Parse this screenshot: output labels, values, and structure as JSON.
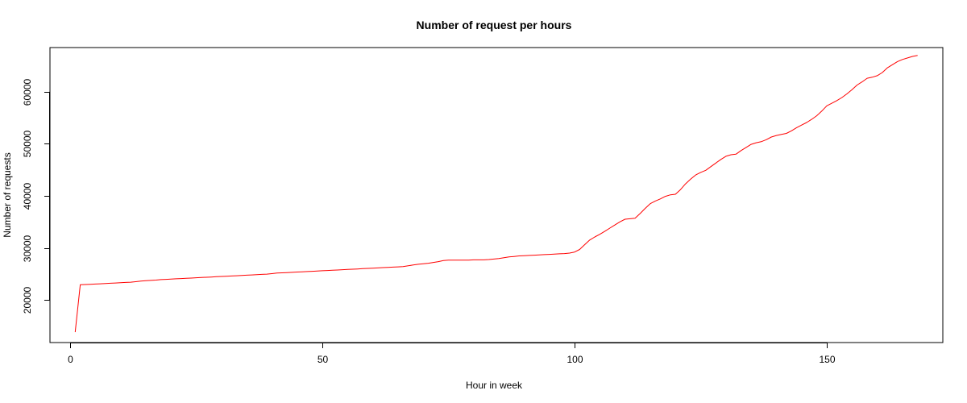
{
  "chart_data": {
    "type": "line",
    "title": "Number of request per hours",
    "xlabel": "Hour in week",
    "ylabel": "Number of requests",
    "xlim": [
      -4,
      173
    ],
    "ylim": [
      11800,
      68500
    ],
    "x_ticks": [
      0,
      50,
      100,
      150
    ],
    "y_ticks": [
      20000,
      30000,
      40000,
      50000,
      60000
    ],
    "x_tick_labels": [
      "0",
      "50",
      "100",
      "150"
    ],
    "y_tick_labels": [
      "20000",
      "30000",
      "40000",
      "50000",
      "60000"
    ],
    "grid": false,
    "legend": "none",
    "line_color": "#ff0000",
    "series": [
      {
        "x": [
          1,
          2,
          3,
          4,
          5,
          6,
          7,
          8,
          9,
          10,
          11,
          12,
          13,
          14,
          15,
          16,
          17,
          18,
          19,
          20,
          21,
          22,
          23,
          24,
          25,
          26,
          27,
          28,
          29,
          30,
          31,
          32,
          33,
          34,
          35,
          36,
          37,
          38,
          39,
          40,
          41,
          42,
          43,
          44,
          45,
          46,
          47,
          48,
          49,
          50,
          51,
          52,
          53,
          54,
          55,
          56,
          57,
          58,
          59,
          60,
          61,
          62,
          63,
          64,
          65,
          66,
          67,
          68,
          69,
          70,
          71,
          72,
          73,
          74,
          75,
          76,
          77,
          78,
          79,
          80,
          81,
          82,
          83,
          84,
          85,
          86,
          87,
          88,
          89,
          90,
          91,
          92,
          93,
          94,
          95,
          96,
          97,
          98,
          99,
          100,
          101,
          102,
          103,
          104,
          105,
          106,
          107,
          108,
          109,
          110,
          111,
          112,
          113,
          114,
          115,
          116,
          117,
          118,
          119,
          120,
          121,
          122,
          123,
          124,
          125,
          126,
          127,
          128,
          129,
          130,
          131,
          132,
          133,
          134,
          135,
          136,
          137,
          138,
          139,
          140,
          141,
          142,
          143,
          144,
          145,
          146,
          147,
          148,
          149,
          150,
          151,
          152,
          153,
          154,
          155,
          156,
          157,
          158,
          159,
          160,
          161,
          162,
          163,
          164,
          165,
          166,
          167,
          168
        ],
        "y": [
          13800,
          22900,
          22950,
          23000,
          23050,
          23100,
          23150,
          23200,
          23250,
          23300,
          23350,
          23400,
          23500,
          23600,
          23700,
          23750,
          23800,
          23900,
          23950,
          24000,
          24050,
          24100,
          24150,
          24200,
          24250,
          24300,
          24350,
          24400,
          24450,
          24500,
          24550,
          24600,
          24650,
          24700,
          24750,
          24800,
          24850,
          24900,
          24950,
          25050,
          25150,
          25200,
          25250,
          25300,
          25350,
          25400,
          25450,
          25500,
          25550,
          25600,
          25650,
          25700,
          25750,
          25800,
          25850,
          25900,
          25950,
          26000,
          26050,
          26100,
          26150,
          26200,
          26250,
          26300,
          26350,
          26400,
          26550,
          26700,
          26850,
          26950,
          27050,
          27200,
          27350,
          27550,
          27650,
          27650,
          27650,
          27650,
          27650,
          27700,
          27700,
          27700,
          27750,
          27850,
          27950,
          28100,
          28250,
          28350,
          28450,
          28500,
          28550,
          28600,
          28650,
          28700,
          28750,
          28800,
          28850,
          28900,
          29000,
          29200,
          29700,
          30600,
          31500,
          32100,
          32600,
          33200,
          33800,
          34400,
          35000,
          35500,
          35600,
          35700,
          36600,
          37600,
          38500,
          39000,
          39400,
          39900,
          40200,
          40300,
          41200,
          42300,
          43200,
          44000,
          44500,
          44900,
          45600,
          46300,
          47000,
          47600,
          47900,
          48000,
          48700,
          49300,
          49900,
          50200,
          50400,
          50800,
          51300,
          51600,
          51800,
          52000,
          52500,
          53100,
          53600,
          54100,
          54700,
          55400,
          56300,
          57300,
          57800,
          58300,
          58900,
          59600,
          60400,
          61300,
          61900,
          62600,
          62800,
          63100,
          63700,
          64600,
          65200,
          65800,
          66200,
          66500,
          66800,
          67000
        ]
      }
    ]
  }
}
